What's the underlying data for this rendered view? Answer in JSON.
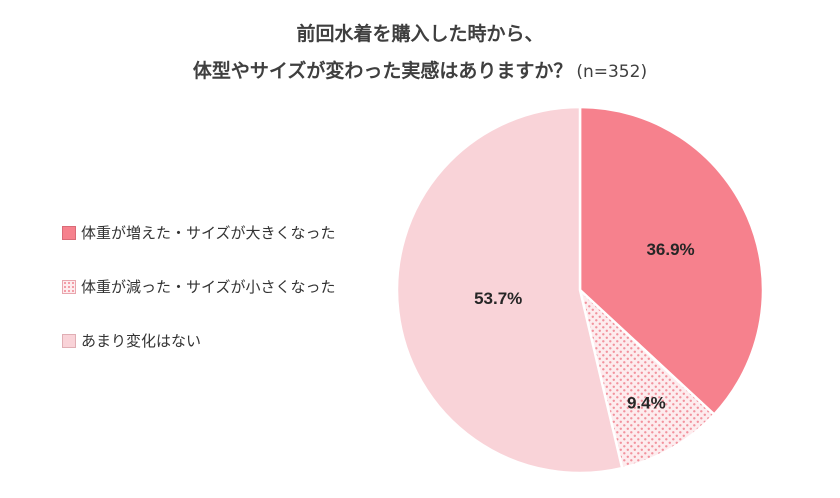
{
  "title": {
    "line1": "前回水着を購入した時から、",
    "line2": "体型やサイズが変わった実感はありますか？",
    "sample": "(n=352)"
  },
  "colors": {
    "title_text": "#3f3f3f",
    "label_text": "#262626",
    "legend_text": "#333333",
    "slice_border": "#ffffff"
  },
  "chart_data": {
    "type": "pie",
    "title": "前回水着を購入した時から、体型やサイズが変わった実感はありますか？",
    "n": 352,
    "unit": "%",
    "start_angle_deg": 0,
    "direction": "clockwise",
    "legend_position": "left",
    "slices": [
      {
        "label": "体重が増えた・サイズが大きくなった",
        "value": 36.9,
        "display": "36.9%",
        "color": "#f6818d",
        "border_color": "#d96b77",
        "pattern": "solid",
        "label_radius": 0.54
      },
      {
        "label": "体重が減った・サイズが小さくなった",
        "value": 9.4,
        "display": "9.4%",
        "color": "#fdecee",
        "dot_color": "#f2929d",
        "border_color": "#e8a6ae",
        "pattern": "dots",
        "label_radius": 0.72
      },
      {
        "label": "あまり変化はない",
        "value": 53.7,
        "display": "53.7%",
        "color": "#f9d3d8",
        "border_color": "#e0aeb4",
        "pattern": "solid",
        "label_radius": 0.45
      }
    ]
  }
}
